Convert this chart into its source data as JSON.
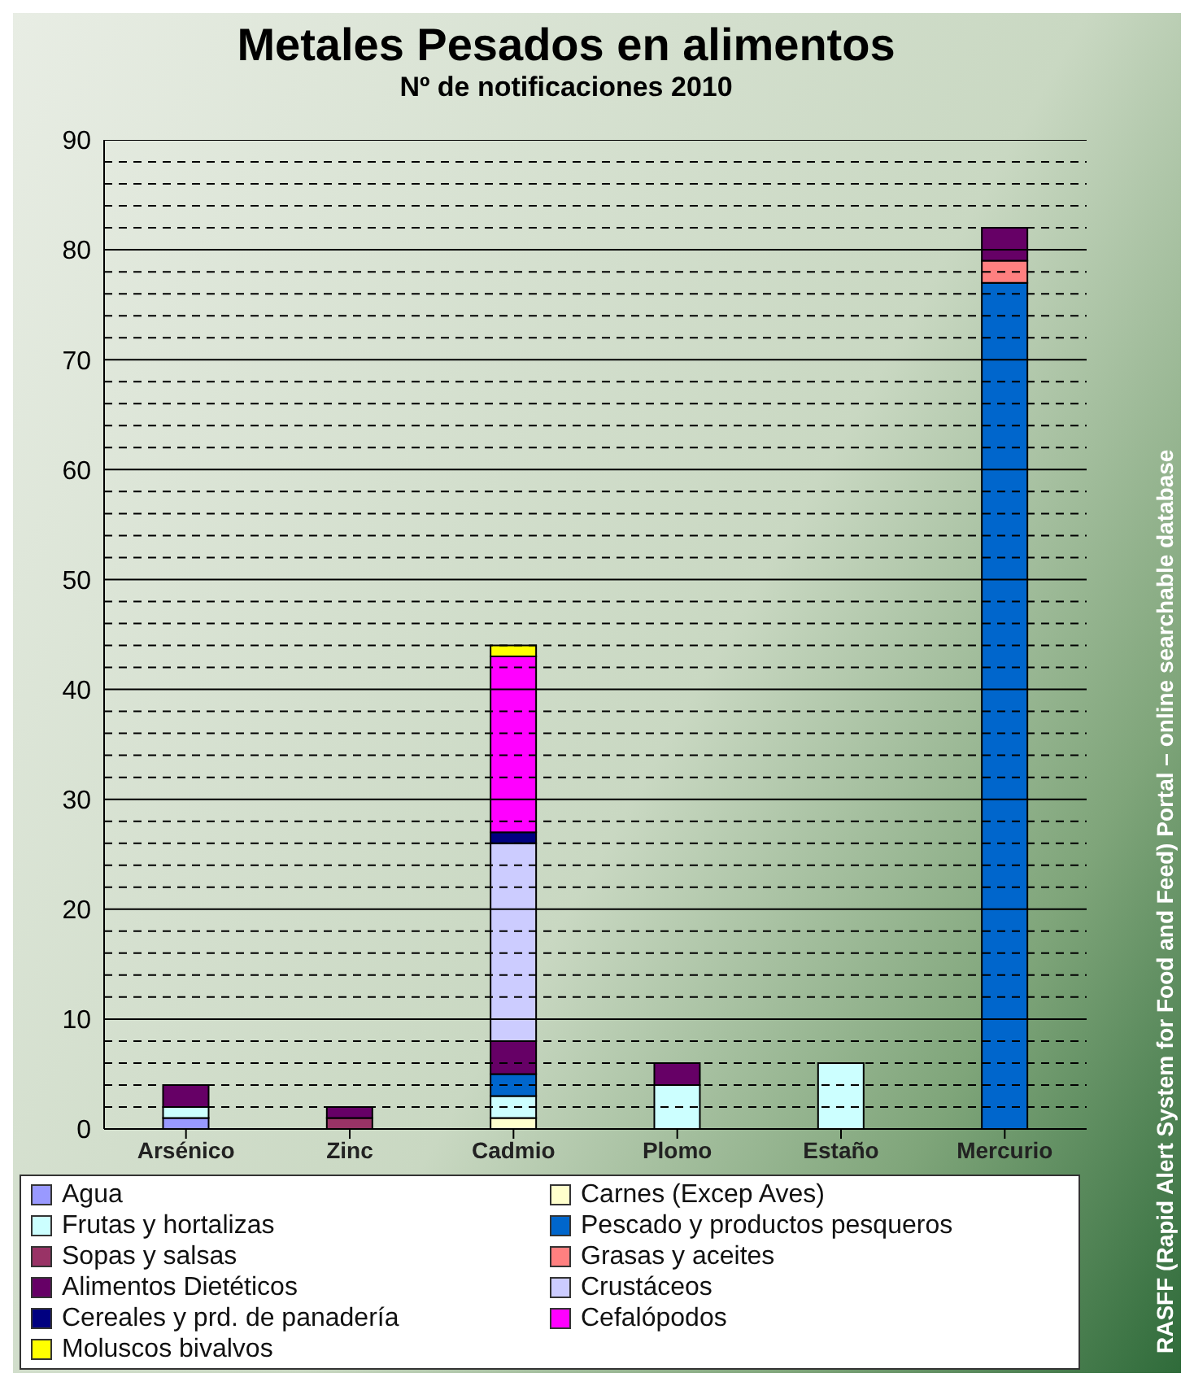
{
  "chart_data": {
    "type": "bar",
    "title": "Metales Pesados en alimentos",
    "subtitle": "Nº de notificaciones 2010",
    "annotations": [
      "RASFF (Rapid Alert System for Food and Feed) Portal – online searchable database"
    ],
    "categories": [
      "Arsénico",
      "Zinc",
      "Cadmio",
      "Plomo",
      "Estaño",
      "Mercurio"
    ],
    "stacked": true,
    "series": [
      {
        "name": "Agua",
        "color": "#9999ff",
        "values": [
          1,
          0,
          0,
          0,
          0,
          0
        ]
      },
      {
        "name": "Carnes (Excep Aves)",
        "color": "#ffffcc",
        "values": [
          0,
          0,
          1,
          0,
          0,
          0
        ]
      },
      {
        "name": "Frutas y hortalizas",
        "color": "#ccffff",
        "values": [
          1,
          0,
          2,
          4,
          6,
          0
        ]
      },
      {
        "name": "Pescado y productos pesqueros",
        "color": "#0066cc",
        "values": [
          0,
          0,
          2,
          0,
          0,
          77
        ]
      },
      {
        "name": "Sopas y salsas",
        "color": "#993366",
        "values": [
          0,
          1,
          0,
          0,
          0,
          0
        ]
      },
      {
        "name": "Grasas y aceites",
        "color": "#ff8080",
        "values": [
          0,
          0,
          0,
          0,
          0,
          2
        ]
      },
      {
        "name": "Alimentos Dietéticos",
        "color": "#660066",
        "values": [
          2,
          1,
          3,
          2,
          0,
          3
        ]
      },
      {
        "name": "Crustáceos",
        "color": "#ccccff",
        "values": [
          0,
          0,
          18,
          0,
          0,
          0
        ]
      },
      {
        "name": "Cereales y prd. de panadería",
        "color": "#000080",
        "values": [
          0,
          0,
          1,
          0,
          0,
          0
        ]
      },
      {
        "name": "Cefalópodos",
        "color": "#ff00ff",
        "values": [
          0,
          0,
          16,
          0,
          0,
          0
        ]
      },
      {
        "name": "Moluscos bivalvos",
        "color": "#ffff00",
        "values": [
          0,
          0,
          1,
          0,
          0,
          0
        ]
      }
    ],
    "ylim": [
      0,
      90
    ],
    "yticks": [
      0,
      {
        "value": 2,
        "label": null
      },
      {
        "value": 4,
        "label": null
      },
      {
        "value": 6,
        "label": null
      },
      {
        "value": 8,
        "label": null
      },
      10,
      {
        "value": 12,
        "label": null
      },
      {
        "value": 14,
        "label": null
      },
      {
        "value": 16,
        "label": null
      },
      {
        "value": 18,
        "label": null
      },
      20,
      {
        "value": 22,
        "label": null
      },
      {
        "value": 24,
        "label": null
      },
      {
        "value": 26,
        "label": null
      },
      {
        "value": 28,
        "label": null
      },
      30,
      {
        "value": 32,
        "label": null
      },
      {
        "value": 34,
        "label": null
      },
      {
        "value": 36,
        "label": null
      },
      {
        "value": 38,
        "label": null
      },
      40,
      {
        "value": 42,
        "label": null
      },
      {
        "value": 44,
        "label": null
      },
      {
        "value": 46,
        "label": null
      },
      {
        "value": 48,
        "label": null
      },
      50,
      {
        "value": 52,
        "label": null
      },
      {
        "value": 54,
        "label": null
      },
      {
        "value": 56,
        "label": null
      },
      {
        "value": 58,
        "label": null
      },
      60,
      {
        "value": 62,
        "label": null
      },
      {
        "value": 64,
        "label": null
      },
      {
        "value": 66,
        "label": null
      },
      {
        "value": 68,
        "label": null
      },
      70,
      {
        "value": 72,
        "label": null
      },
      {
        "value": 74,
        "label": null
      },
      {
        "value": 76,
        "label": null
      },
      {
        "value": 78,
        "label": null
      },
      80,
      {
        "value": 82,
        "label": null
      },
      {
        "value": 84,
        "label": null
      },
      {
        "value": 86,
        "label": null
      },
      {
        "value": 88,
        "label": null
      },
      90
    ],
    "grid": "y",
    "legend": "bottom"
  }
}
